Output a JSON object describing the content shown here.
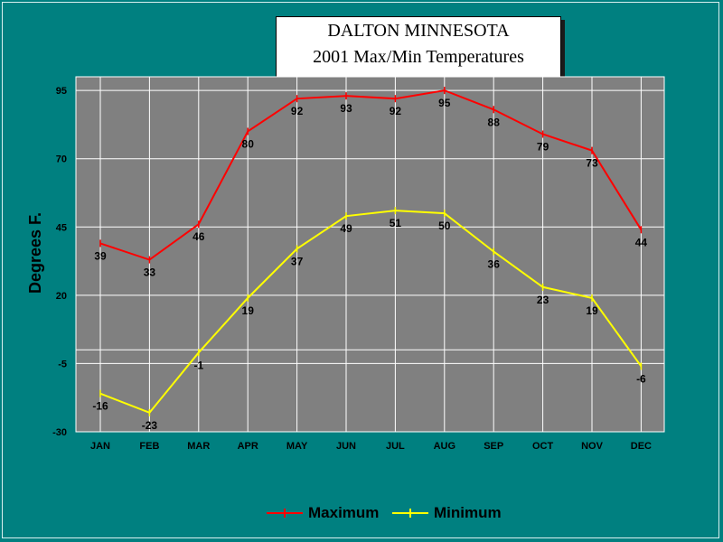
{
  "chart_data": {
    "type": "line",
    "title": [
      "DALTON MINNESOTA",
      "2001 Max/Min Temperatures"
    ],
    "ylabel": "Degrees F.",
    "xlabel": "",
    "categories": [
      "JAN",
      "FEB",
      "MAR",
      "APR",
      "MAY",
      "JUN",
      "JUL",
      "AUG",
      "SEP",
      "OCT",
      "NOV",
      "DEC"
    ],
    "ylim": [
      -30,
      100
    ],
    "yticks": [
      95,
      70,
      45,
      20,
      -5,
      -30
    ],
    "grid": true,
    "legend_position": "bottom",
    "series": [
      {
        "name": "Maximum",
        "color": "#ff0000",
        "values": [
          39,
          33,
          46,
          80,
          92,
          93,
          92,
          95,
          88,
          79,
          73,
          44
        ]
      },
      {
        "name": "Minimum",
        "color": "#ffff00",
        "values": [
          -16,
          -23,
          -1,
          19,
          37,
          49,
          51,
          50,
          36,
          23,
          19,
          -6
        ]
      }
    ]
  },
  "colors": {
    "background": "#008080",
    "plot_area": "#808080",
    "gridline": "#ffffff"
  }
}
